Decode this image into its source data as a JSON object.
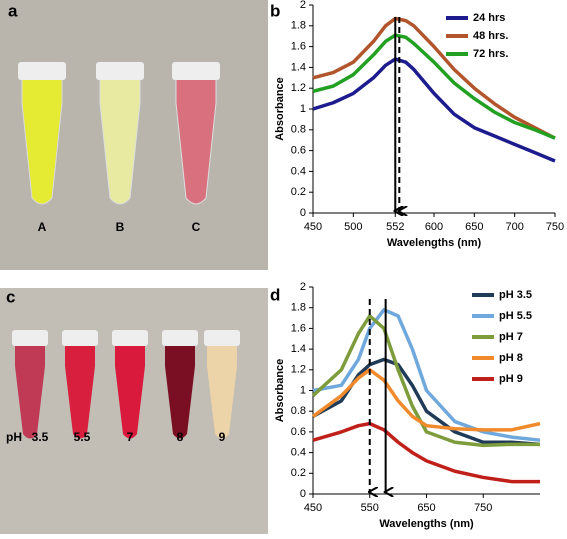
{
  "panels": {
    "a": {
      "label": "a",
      "tubes": [
        "A",
        "B",
        "C"
      ]
    },
    "c": {
      "label": "c",
      "prefix": "pH",
      "tubes": [
        "3.5",
        "5.5",
        "7",
        "8",
        "9"
      ]
    }
  },
  "chart_data": [
    {
      "type": "line",
      "label": "b",
      "x_label": "Wavelengths (nm)",
      "y_label": "Absorbance",
      "xlim": [
        450,
        750
      ],
      "xticks": [
        450,
        500,
        552,
        600,
        650,
        700,
        750
      ],
      "ylim": [
        0,
        2
      ],
      "yticks": [
        0,
        0.2,
        0.4,
        0.6,
        0.8,
        1,
        1.2,
        1.4,
        1.6,
        1.8,
        2
      ],
      "x": [
        450,
        475,
        500,
        525,
        540,
        552,
        565,
        575,
        600,
        625,
        650,
        675,
        700,
        725,
        750
      ],
      "series": [
        {
          "name": "24 hrs",
          "color": "#1c1c8f",
          "values": [
            1.0,
            1.06,
            1.15,
            1.3,
            1.42,
            1.48,
            1.45,
            1.38,
            1.15,
            0.95,
            0.82,
            0.74,
            0.66,
            0.58,
            0.5
          ]
        },
        {
          "name": "48 hrs.",
          "color": "#b2552c",
          "values": [
            1.3,
            1.35,
            1.45,
            1.65,
            1.8,
            1.87,
            1.85,
            1.8,
            1.6,
            1.38,
            1.2,
            1.05,
            0.92,
            0.82,
            0.72
          ]
        },
        {
          "name": "72 hrs.",
          "color": "#22a022",
          "values": [
            1.17,
            1.22,
            1.33,
            1.52,
            1.65,
            1.71,
            1.69,
            1.63,
            1.45,
            1.25,
            1.1,
            0.97,
            0.87,
            0.8,
            0.72
          ]
        }
      ],
      "arrows": [
        {
          "x": 552,
          "style": "solid"
        },
        {
          "x": 557,
          "style": "dashed"
        }
      ]
    },
    {
      "type": "line",
      "label": "d",
      "x_label": "Wavelengths (nm)",
      "y_label": "Absorbance",
      "xlim": [
        450,
        850
      ],
      "xticks": [
        450,
        550,
        650,
        750
      ],
      "ylim": [
        0,
        2
      ],
      "yticks": [
        0,
        0.2,
        0.4,
        0.6,
        0.8,
        1,
        1.2,
        1.4,
        1.6,
        1.8,
        2
      ],
      "x": [
        450,
        500,
        530,
        550,
        575,
        600,
        625,
        650,
        700,
        750,
        800,
        850
      ],
      "series": [
        {
          "name": "pH 3.5",
          "color": "#1f3b57",
          "values": [
            0.75,
            0.9,
            1.15,
            1.25,
            1.3,
            1.25,
            1.05,
            0.8,
            0.6,
            0.5,
            0.5,
            0.48
          ]
        },
        {
          "name": "pH 5.5",
          "color": "#6fa8dc",
          "values": [
            1.0,
            1.05,
            1.3,
            1.6,
            1.78,
            1.72,
            1.4,
            1.0,
            0.7,
            0.6,
            0.55,
            0.52
          ]
        },
        {
          "name": "pH 7",
          "color": "#7d9c3c",
          "values": [
            0.95,
            1.2,
            1.55,
            1.72,
            1.6,
            1.2,
            0.85,
            0.6,
            0.5,
            0.47,
            0.48,
            0.48
          ]
        },
        {
          "name": "pH 8",
          "color": "#f08a2c",
          "values": [
            0.75,
            0.95,
            1.12,
            1.2,
            1.1,
            0.9,
            0.75,
            0.66,
            0.63,
            0.62,
            0.62,
            0.68
          ]
        },
        {
          "name": "pH 9",
          "color": "#c0201a",
          "values": [
            0.52,
            0.6,
            0.66,
            0.68,
            0.62,
            0.5,
            0.4,
            0.32,
            0.22,
            0.16,
            0.12,
            0.12
          ]
        }
      ],
      "arrows": [
        {
          "x": 550,
          "style": "dashed"
        },
        {
          "x": 578,
          "style": "solid"
        }
      ]
    }
  ]
}
